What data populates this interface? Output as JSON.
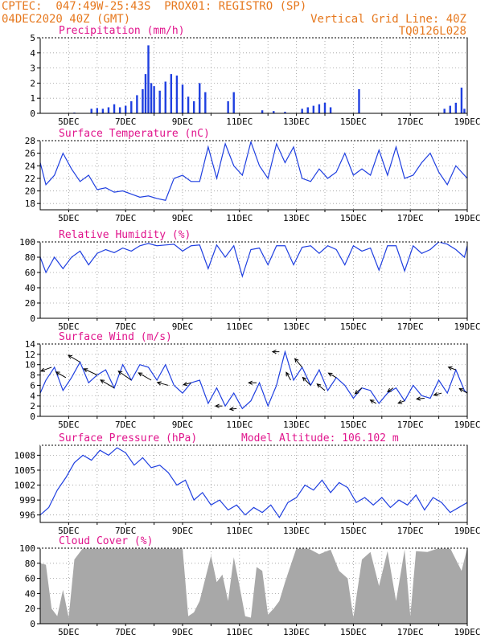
{
  "header": {
    "line1": "CPTEC:  047:49W-25:43S  PROX01: REGISTRO (SP)",
    "line2": "04DEC2020 40Z (GMT)",
    "grid_note": "Vertical Grid Line: 40Z",
    "code": "TQ0126L028"
  },
  "colors": {
    "header": "#e6781e",
    "panel_title": "#e0148c",
    "line": "#1f3fe0",
    "precip_bar": "#1f3fe0",
    "cloud": "#a8a8a8",
    "arrow": "#000000",
    "grid": "#9a9a9a"
  },
  "x_axis": {
    "start_day": 4,
    "end_day": 19,
    "tick_labels": [
      "5DEC",
      "7DEC",
      "9DEC",
      "11DEC",
      "13DEC",
      "15DEC",
      "17DEC",
      "19DEC"
    ]
  },
  "chart_data": [
    {
      "id": "precipitation",
      "type": "bar",
      "title": "Precipitation (mm/h)",
      "ylim": [
        0,
        5
      ],
      "yticks": [
        "0",
        "1",
        "2",
        "3",
        "4",
        "5"
      ],
      "series": [
        {
          "x_day": [
            5.2,
            5.8,
            6.0,
            6.2,
            6.4,
            6.6,
            6.8,
            7.0,
            7.2,
            7.4,
            7.6,
            7.7,
            7.8,
            7.9,
            8.0,
            8.2,
            8.4,
            8.6,
            8.8,
            9.0,
            9.2,
            9.4,
            9.6,
            9.8,
            10.6,
            10.8,
            11.8,
            12.2,
            12.6,
            13.2,
            13.4,
            13.6,
            13.8,
            14.0,
            14.2,
            15.2,
            18.2,
            18.4,
            18.6,
            18.8,
            18.9
          ],
          "values": [
            0.05,
            0.3,
            0.35,
            0.3,
            0.4,
            0.6,
            0.4,
            0.5,
            0.8,
            1.2,
            1.6,
            2.6,
            4.5,
            2.0,
            1.8,
            1.5,
            2.1,
            2.6,
            2.5,
            1.9,
            1.1,
            0.8,
            2.0,
            1.4,
            0.8,
            1.4,
            0.2,
            0.15,
            0.1,
            0.3,
            0.4,
            0.5,
            0.6,
            0.7,
            0.4,
            1.6,
            0.3,
            0.5,
            0.7,
            1.7,
            0.3
          ]
        }
      ]
    },
    {
      "id": "temperature",
      "type": "line",
      "title": "Surface Temperature (nC)",
      "ylim": [
        17,
        28
      ],
      "yticks": [
        "18",
        "20",
        "22",
        "24",
        "26",
        "28"
      ],
      "series": [
        {
          "x_day": [
            4.0,
            4.2,
            4.5,
            4.8,
            5.1,
            5.4,
            5.7,
            6.0,
            6.3,
            6.6,
            6.9,
            7.2,
            7.5,
            7.8,
            8.1,
            8.4,
            8.7,
            9.0,
            9.3,
            9.6,
            9.9,
            10.2,
            10.5,
            10.8,
            11.1,
            11.4,
            11.7,
            12.0,
            12.3,
            12.6,
            12.9,
            13.2,
            13.5,
            13.8,
            14.1,
            14.4,
            14.7,
            15.0,
            15.3,
            15.6,
            15.9,
            16.2,
            16.5,
            16.8,
            17.1,
            17.4,
            17.7,
            18.0,
            18.3,
            18.6,
            18.9,
            19.0
          ],
          "values": [
            24.5,
            21.0,
            22.5,
            26.0,
            23.5,
            21.5,
            22.5,
            20.2,
            20.5,
            19.8,
            20.0,
            19.5,
            19.0,
            19.2,
            18.8,
            18.5,
            22.0,
            22.5,
            21.5,
            21.5,
            27.0,
            22.0,
            27.5,
            24.0,
            22.5,
            27.8,
            24.0,
            22.0,
            27.5,
            24.5,
            27.0,
            22.0,
            21.5,
            23.5,
            22.0,
            23.0,
            26.0,
            22.5,
            23.5,
            22.5,
            26.5,
            22.5,
            27.0,
            22.0,
            22.5,
            24.5,
            26.0,
            23.0,
            21.0,
            24.0,
            22.5,
            22.0
          ]
        }
      ]
    },
    {
      "id": "humidity",
      "type": "line",
      "title": "Relative Humidity (%)",
      "ylim": [
        0,
        100
      ],
      "yticks": [
        "0",
        "20",
        "40",
        "60",
        "80",
        "100"
      ],
      "series": [
        {
          "x_day": [
            4.0,
            4.2,
            4.5,
            4.8,
            5.1,
            5.4,
            5.7,
            6.0,
            6.3,
            6.6,
            6.9,
            7.2,
            7.5,
            7.8,
            8.1,
            8.4,
            8.7,
            9.0,
            9.3,
            9.6,
            9.9,
            10.2,
            10.5,
            10.8,
            11.1,
            11.4,
            11.7,
            12.0,
            12.3,
            12.6,
            12.9,
            13.2,
            13.5,
            13.8,
            14.1,
            14.4,
            14.7,
            15.0,
            15.3,
            15.6,
            15.9,
            16.2,
            16.5,
            16.8,
            17.1,
            17.4,
            17.7,
            18.0,
            18.3,
            18.6,
            18.9,
            19.0
          ],
          "values": [
            80,
            60,
            80,
            65,
            80,
            88,
            70,
            85,
            90,
            86,
            92,
            88,
            95,
            98,
            95,
            96,
            97,
            88,
            95,
            96,
            65,
            96,
            80,
            95,
            55,
            90,
            92,
            70,
            95,
            95,
            70,
            93,
            95,
            85,
            95,
            90,
            70,
            95,
            88,
            92,
            63,
            95,
            95,
            62,
            95,
            85,
            90,
            100,
            97,
            90,
            80,
            95
          ]
        }
      ]
    },
    {
      "id": "wind",
      "type": "line",
      "title": "Surface Wind (m/s)",
      "ylim": [
        0,
        14
      ],
      "yticks": [
        "0",
        "2",
        "4",
        "6",
        "8",
        "10",
        "12",
        "14"
      ],
      "series": [
        {
          "x_day": [
            4.0,
            4.2,
            4.5,
            4.8,
            5.1,
            5.4,
            5.7,
            6.0,
            6.3,
            6.6,
            6.9,
            7.2,
            7.5,
            7.8,
            8.1,
            8.4,
            8.7,
            9.0,
            9.3,
            9.6,
            9.9,
            10.2,
            10.5,
            10.8,
            11.1,
            11.4,
            11.7,
            12.0,
            12.3,
            12.6,
            12.9,
            13.2,
            13.5,
            13.8,
            14.1,
            14.4,
            14.7,
            15.0,
            15.3,
            15.6,
            15.9,
            16.2,
            16.5,
            16.8,
            17.1,
            17.4,
            17.7,
            18.0,
            18.3,
            18.6,
            18.9,
            19.0
          ],
          "values": [
            4.5,
            7.0,
            9.5,
            5.0,
            7.5,
            10.5,
            6.5,
            8.0,
            9.0,
            5.5,
            10.0,
            7.0,
            10.0,
            9.5,
            7.0,
            10.0,
            6.0,
            4.5,
            6.5,
            7.0,
            2.5,
            5.5,
            2.0,
            4.5,
            1.5,
            3.0,
            6.5,
            2.0,
            6.0,
            12.5,
            7.0,
            9.5,
            6.0,
            9.0,
            5.0,
            7.5,
            6.0,
            3.5,
            5.5,
            5.0,
            2.5,
            4.5,
            5.5,
            3.0,
            6.0,
            4.0,
            3.5,
            7.0,
            4.5,
            9.0,
            5.0,
            4.5
          ]
        }
      ],
      "arrows": [
        {
          "x_day": 4.4,
          "dir_deg": 200,
          "len": 1.0
        },
        {
          "x_day": 4.9,
          "dir_deg": 150,
          "len": 1.0
        },
        {
          "x_day": 5.4,
          "dir_deg": 150,
          "len": 1.2
        },
        {
          "x_day": 6.0,
          "dir_deg": 155,
          "len": 1.3
        },
        {
          "x_day": 6.6,
          "dir_deg": 150,
          "len": 1.4
        },
        {
          "x_day": 7.2,
          "dir_deg": 145,
          "len": 1.4
        },
        {
          "x_day": 7.9,
          "dir_deg": 150,
          "len": 1.3
        },
        {
          "x_day": 8.5,
          "dir_deg": 165,
          "len": 1.0
        },
        {
          "x_day": 9.3,
          "dir_deg": 195,
          "len": 0.7
        },
        {
          "x_day": 10.4,
          "dir_deg": 180,
          "len": 0.6
        },
        {
          "x_day": 10.9,
          "dir_deg": 185,
          "len": 0.6
        },
        {
          "x_day": 11.6,
          "dir_deg": 180,
          "len": 0.7
        },
        {
          "x_day": 12.4,
          "dir_deg": 180,
          "len": 0.6
        },
        {
          "x_day": 12.8,
          "dir_deg": 120,
          "len": 0.8
        },
        {
          "x_day": 13.2,
          "dir_deg": 130,
          "len": 1.0
        },
        {
          "x_day": 13.5,
          "dir_deg": 135,
          "len": 1.0
        },
        {
          "x_day": 14.0,
          "dir_deg": 140,
          "len": 0.9
        },
        {
          "x_day": 14.4,
          "dir_deg": 150,
          "len": 0.8
        },
        {
          "x_day": 15.3,
          "dir_deg": 220,
          "len": 0.8
        },
        {
          "x_day": 15.8,
          "dir_deg": 150,
          "len": 0.6
        },
        {
          "x_day": 16.4,
          "dir_deg": 215,
          "len": 0.6
        },
        {
          "x_day": 16.8,
          "dir_deg": 200,
          "len": 0.6
        },
        {
          "x_day": 17.5,
          "dir_deg": 185,
          "len": 0.7
        },
        {
          "x_day": 18.1,
          "dir_deg": 195,
          "len": 0.7
        },
        {
          "x_day": 18.6,
          "dir_deg": 160,
          "len": 0.7
        },
        {
          "x_day": 19.0,
          "dir_deg": 150,
          "len": 0.8
        }
      ]
    },
    {
      "id": "pressure",
      "type": "line",
      "title": "Surface Pressure (hPa)",
      "subtitle": "Model Altitude: 106.102 m",
      "ylim": [
        994.5,
        1010
      ],
      "yticks": [
        "996",
        "999",
        "1002",
        "1005",
        "1008"
      ],
      "series": [
        {
          "x_day": [
            4.0,
            4.3,
            4.6,
            4.9,
            5.2,
            5.5,
            5.8,
            6.1,
            6.4,
            6.7,
            7.0,
            7.3,
            7.6,
            7.9,
            8.2,
            8.5,
            8.8,
            9.1,
            9.4,
            9.7,
            10.0,
            10.3,
            10.6,
            10.9,
            11.2,
            11.5,
            11.8,
            12.1,
            12.4,
            12.7,
            13.0,
            13.3,
            13.6,
            13.9,
            14.2,
            14.5,
            14.8,
            15.1,
            15.4,
            15.7,
            16.0,
            16.3,
            16.6,
            16.9,
            17.2,
            17.5,
            17.8,
            18.1,
            18.4,
            18.7,
            19.0
          ],
          "values": [
            996.0,
            997.5,
            1001.0,
            1003.5,
            1006.5,
            1008.0,
            1007.0,
            1009.0,
            1008.0,
            1009.5,
            1008.5,
            1006.0,
            1007.5,
            1005.5,
            1006.0,
            1004.5,
            1002.0,
            1003.0,
            999.0,
            1000.5,
            998.0,
            999.0,
            997.0,
            998.0,
            996.0,
            997.5,
            996.5,
            998.0,
            995.5,
            998.5,
            999.5,
            1002.0,
            1001.0,
            1003.0,
            1000.5,
            1002.5,
            1001.5,
            998.5,
            999.5,
            998.0,
            999.5,
            997.5,
            999.0,
            998.0,
            1000.0,
            997.0,
            999.5,
            998.5,
            996.5,
            997.5,
            998.5
          ]
        }
      ]
    },
    {
      "id": "cloud",
      "type": "area",
      "title": "Cloud Cover (%)",
      "ylim": [
        0,
        100
      ],
      "yticks": [
        "0",
        "20",
        "40",
        "60",
        "80",
        "100"
      ],
      "series": [
        {
          "x_day": [
            4.0,
            4.2,
            4.4,
            4.6,
            4.8,
            5.0,
            5.2,
            5.5,
            6.0,
            7.0,
            8.0,
            9.0,
            9.2,
            9.4,
            9.6,
            10.0,
            10.2,
            10.4,
            10.6,
            10.8,
            11.0,
            11.2,
            11.4,
            11.6,
            11.8,
            12.0,
            12.2,
            12.4,
            12.6,
            13.0,
            13.4,
            13.8,
            14.2,
            14.5,
            14.8,
            15.0,
            15.3,
            15.6,
            15.9,
            16.2,
            16.5,
            16.8,
            17.0,
            17.2,
            17.6,
            18.0,
            18.4,
            18.8,
            19.0
          ],
          "values": [
            80,
            78,
            20,
            10,
            45,
            8,
            85,
            100,
            100,
            100,
            100,
            100,
            10,
            15,
            30,
            90,
            55,
            65,
            30,
            88,
            50,
            10,
            8,
            75,
            70,
            12,
            20,
            30,
            55,
            100,
            100,
            92,
            98,
            70,
            60,
            8,
            85,
            95,
            50,
            96,
            30,
            98,
            10,
            96,
            95,
            100,
            100,
            70,
            100
          ]
        }
      ]
    }
  ]
}
